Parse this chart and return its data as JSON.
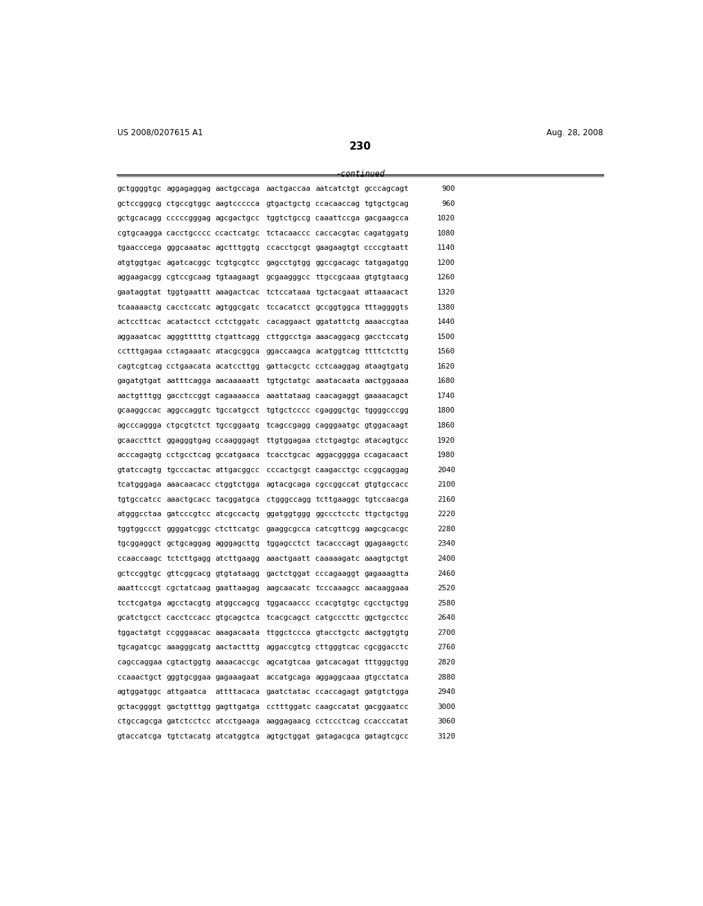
{
  "header_left": "US 2008/0207615 A1",
  "header_right": "Aug. 28, 2008",
  "page_number": "230",
  "continued_label": "-continued",
  "background_color": "#ffffff",
  "text_color": "#000000",
  "sequence_lines": [
    [
      "gctggggtgc",
      "aggagaggag",
      "aactgccaga",
      "aactgaccaa",
      "aatcatctgt",
      "gcccagcagt",
      "900"
    ],
    [
      "gctccgggcg",
      "ctgccgtggc",
      "aagtccccca",
      "gtgactgctg",
      "ccacaaccag",
      "tgtgctgcag",
      "960"
    ],
    [
      "gctgcacagg",
      "cccccgggag",
      "agcgactgcc",
      "tggtctgccg",
      "caaattccga",
      "gacgaagcca",
      "1020"
    ],
    [
      "cgtgcaagga",
      "cacctgcccc",
      "ccactcatgc",
      "tctacaaccc",
      "caccacgtac",
      "cagatggatg",
      "1080"
    ],
    [
      "tgaacccega",
      "gggcaaatac",
      "agctttggtg",
      "ccacctgcgt",
      "gaagaagtgt",
      "ccccgtaatt",
      "1140"
    ],
    [
      "atgtggtgac",
      "agatcacggc",
      "tcgtgcgtcc",
      "gagcctgtgg",
      "ggccgacagc",
      "tatgagatgg",
      "1200"
    ],
    [
      "aggaagacgg",
      "cgtccgcaag",
      "tgtaagaagt",
      "gcgaagggcc",
      "ttgccgcaaa",
      "gtgtgtaacg",
      "1260"
    ],
    [
      "gaataggtat",
      "tggtgaattt",
      "aaagactcac",
      "tctccataaa",
      "tgctacgaat",
      "attaaacact",
      "1320"
    ],
    [
      "tcaaaaactg",
      "cacctccatc",
      "agtggcgatc",
      "tccacatcct",
      "gccggtggca",
      "tttaggggts",
      "1380"
    ],
    [
      "actccttcac",
      "acatactcct",
      "cctctggatc",
      "cacaggaact",
      "ggatattctg",
      "aaaaccgtaa",
      "1440"
    ],
    [
      "aggaaatcac",
      "agggtttttg",
      "ctgattcagg",
      "cttggcctga",
      "aaacaggacg",
      "gacctccatg",
      "1500"
    ],
    [
      "cctttgagaa",
      "cctagaaatc",
      "atacgcggca",
      "ggaccaagca",
      "acatggtcag",
      "ttttctcttg",
      "1560"
    ],
    [
      "cagtcgtcag",
      "cctgaacata",
      "acatccttgg",
      "gattacgctc",
      "cctcaaggag",
      "ataagtgatg",
      "1620"
    ],
    [
      "gagatgtgat",
      "aatttcagga",
      "aacaaaaatt",
      "tgtgctatgc",
      "aaatacaata",
      "aactggaaaa",
      "1680"
    ],
    [
      "aactgtttgg",
      "gacctccggt",
      "cagaaaacca",
      "aaattataag",
      "caacagaggt",
      "gaaaacagct",
      "1740"
    ],
    [
      "gcaaggccac",
      "aggccaggtc",
      "tgccatgcct",
      "tgtgctcccc",
      "cgagggctgc",
      "tggggcccgg",
      "1800"
    ],
    [
      "agcccaggga",
      "ctgcgtctct",
      "tgccggaatg",
      "tcagccgagg",
      "cagggaatgc",
      "gtggacaagt",
      "1860"
    ],
    [
      "gcaaccttct",
      "ggagggtgag",
      "ccaagggagt",
      "ttgtggagaa",
      "ctctgagtgc",
      "atacagtgcc",
      "1920"
    ],
    [
      "acccagagtg",
      "cctgcctcag",
      "gccatgaaca",
      "tcacctgcac",
      "aggacgggga",
      "ccagacaact",
      "1980"
    ],
    [
      "gtatccagtg",
      "tgcccactac",
      "attgacggcc",
      "cccactgcgt",
      "caagacctgc",
      "ccggcaggag",
      "2040"
    ],
    [
      "tcatgggaga",
      "aaacaacacc",
      "ctggtctgga",
      "agtacgcaga",
      "cgccggccat",
      "gtgtgccacc",
      "2100"
    ],
    [
      "tgtgccatcc",
      "aaactgcacc",
      "tacggatgca",
      "ctgggccagg",
      "tcttgaaggc",
      "tgtccaacga",
      "2160"
    ],
    [
      "atgggcctaa",
      "gatcccgtcc",
      "atcgccactg",
      "ggatggtggg",
      "ggccctcctc",
      "ttgctgctgg",
      "2220"
    ],
    [
      "tggtggccct",
      "ggggatcggc",
      "ctcttcatgc",
      "gaaggcgcca",
      "catcgttcgg",
      "aagcgcacgc",
      "2280"
    ],
    [
      "tgcggaggct",
      "gctgcaggag",
      "agggagcttg",
      "tggagcctct",
      "tacacccagt",
      "ggagaagctc",
      "2340"
    ],
    [
      "ccaaccaagc",
      "tctcttgagg",
      "atcttgaagg",
      "aaactgaatt",
      "caaaaagatc",
      "aaagtgctgt",
      "2400"
    ],
    [
      "gctccggtgc",
      "gttcggcacg",
      "gtgtataagg",
      "gactctggat",
      "cccagaaggt",
      "gagaaagtta",
      "2460"
    ],
    [
      "aaattcccgt",
      "cgctatcaag",
      "gaattaagag",
      "aagcaacatc",
      "tcccaaagcc",
      "aacaaggaaa",
      "2520"
    ],
    [
      "tcctcgatga",
      "agcctacgtg",
      "atggccagcg",
      "tggacaaccc",
      "ccacgtgtgc",
      "cgcctgctgg",
      "2580"
    ],
    [
      "gcatctgcct",
      "cacctccacc",
      "gtgcagctca",
      "tcacgcagct",
      "catgcccttc",
      "ggctgcctcc",
      "2640"
    ],
    [
      "tggactatgt",
      "ccgggaacac",
      "aaagacaata",
      "ttggctccca",
      "gtacctgctc",
      "aactggtgtg",
      "2700"
    ],
    [
      "tgcagatcgc",
      "aaagggcatg",
      "aactactttg",
      "aggaccgtcg",
      "cttgggtcac",
      "cgcggacctc",
      "2760"
    ],
    [
      "cagccaggaa",
      "cgtactggtg",
      "aaaacaccgc",
      "agcatgtcaa",
      "gatcacagat",
      "tttgggctgg",
      "2820"
    ],
    [
      "ccaaactgct",
      "gggtgcggaa",
      "gagaaagaat",
      "accatgcaga",
      "aggaggcaaa",
      "gtgcctatca",
      "2880"
    ],
    [
      "agtggatggc",
      "attgaatca",
      "attttacaca",
      "gaatctatac",
      "ccaccagagt",
      "gatgtctgga",
      "2940"
    ],
    [
      "gctacggggt",
      "gactgtttgg",
      "gagttgatga",
      "cctttggatc",
      "caagccatat",
      "gacggaatcc",
      "3000"
    ],
    [
      "ctgccagcga",
      "gatctcctcc",
      "atcctgaaga",
      "aaggagaacg",
      "cctccctcag",
      "ccacccatat",
      "3060"
    ],
    [
      "gtaccatcga",
      "tgtctacatg",
      "atcatggtca",
      "agtgctggat",
      "gatagacgca",
      "gatagtcgcc",
      "3120"
    ]
  ]
}
